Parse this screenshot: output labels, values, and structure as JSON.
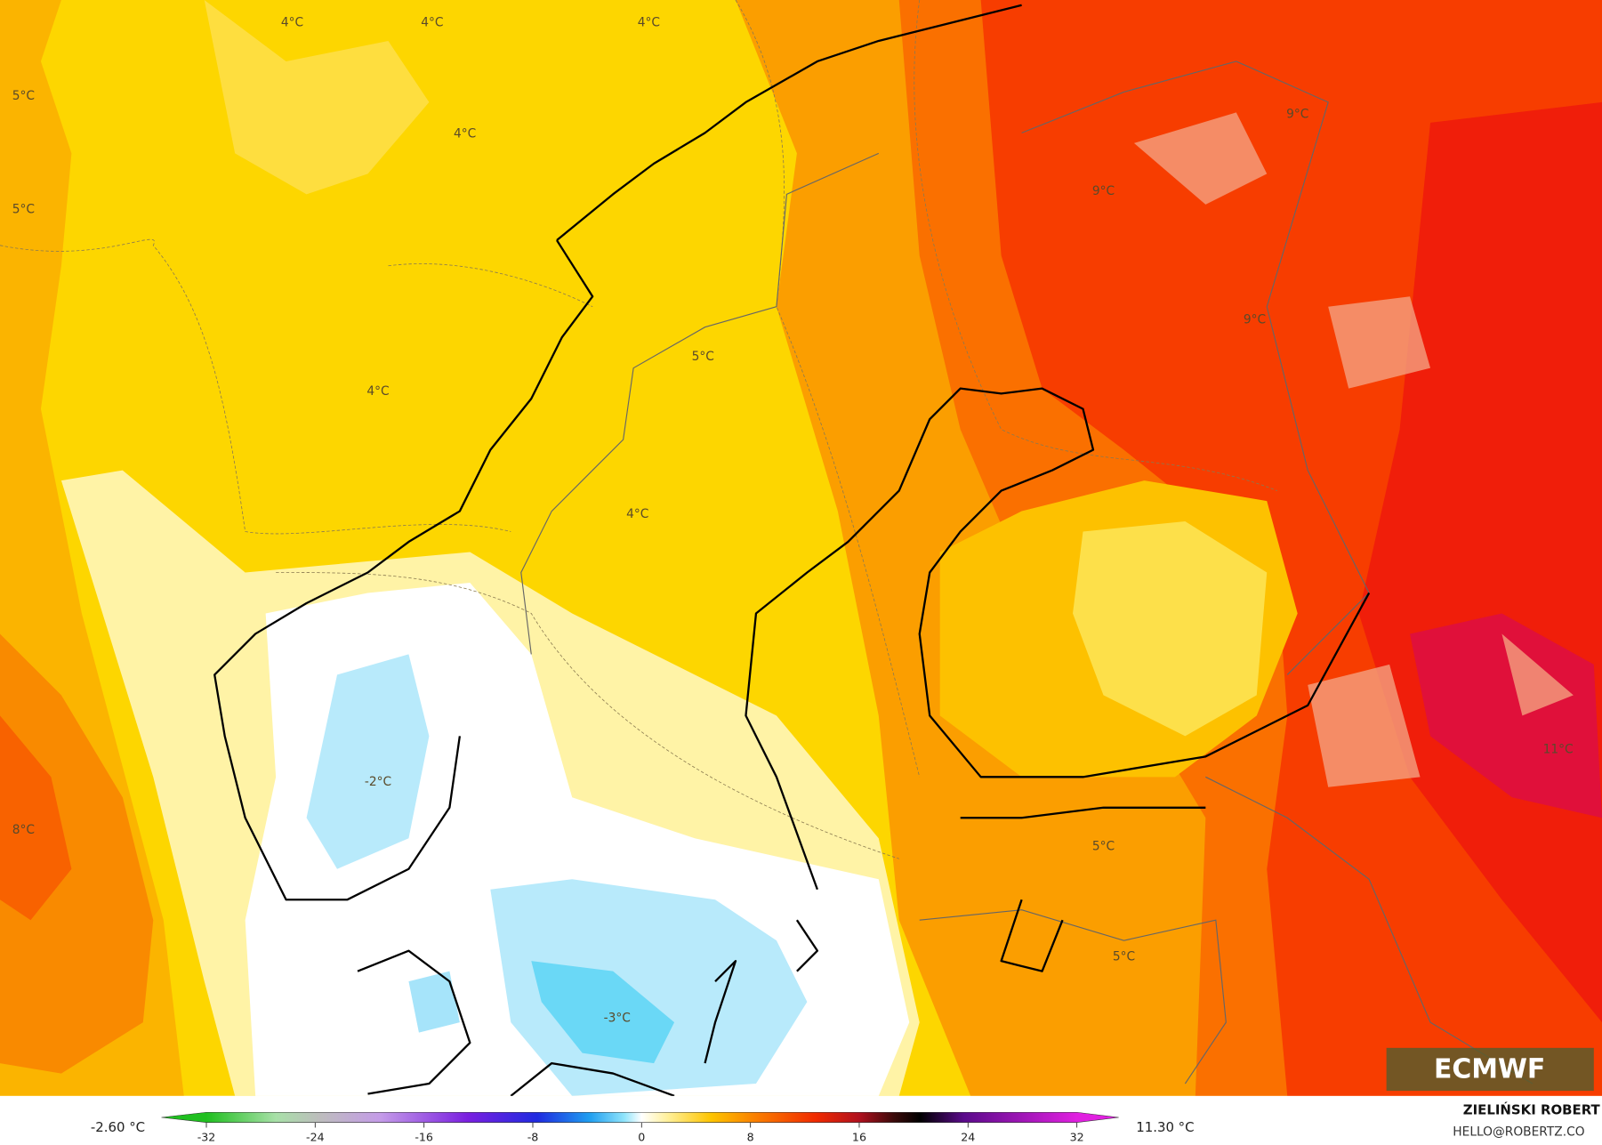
{
  "map": {
    "labels": [
      "4°C",
      "4°C",
      "4°C",
      "5°C",
      "4°C",
      "5°C",
      "9°C",
      "9°C",
      "9°C",
      "5°C",
      "4°C",
      "4°C",
      "-2°C",
      "8°C",
      "11°C",
      "5°C",
      "5°C",
      "-3°C"
    ],
    "logo": "ECMWF"
  },
  "legend": {
    "ticks": [
      -32,
      -24,
      -16,
      -8,
      0,
      8,
      16,
      24,
      32
    ],
    "min_label": "-2.60 °C",
    "max_label": "11.30 °C"
  },
  "credits": {
    "author": "ZIELIŃSKI ROBERT",
    "contact": "HELLO@ROBERTZ.CO"
  }
}
